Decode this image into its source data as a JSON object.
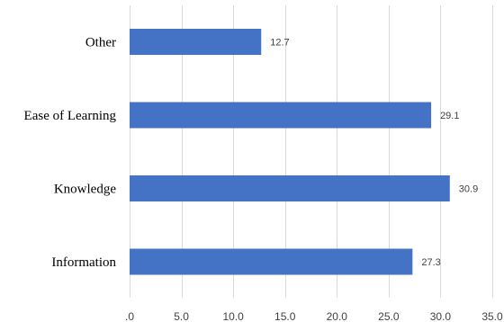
{
  "chart_data": {
    "type": "bar",
    "orientation": "horizontal",
    "categories": [
      "Other",
      "Ease of Learning",
      "Knowledge",
      "Information"
    ],
    "values": [
      12.7,
      29.1,
      30.9,
      27.3
    ],
    "data_labels": [
      "12.7",
      "29.1",
      "30.9",
      "27.3"
    ],
    "xlim": [
      0,
      35
    ],
    "x_ticks": [
      ".0",
      "5.0",
      "10.0",
      "15.0",
      "20.0",
      "25.0",
      "30.0",
      "35.0"
    ],
    "grid": true,
    "legend": "none",
    "colors": {
      "bar": "#4472c4"
    }
  }
}
